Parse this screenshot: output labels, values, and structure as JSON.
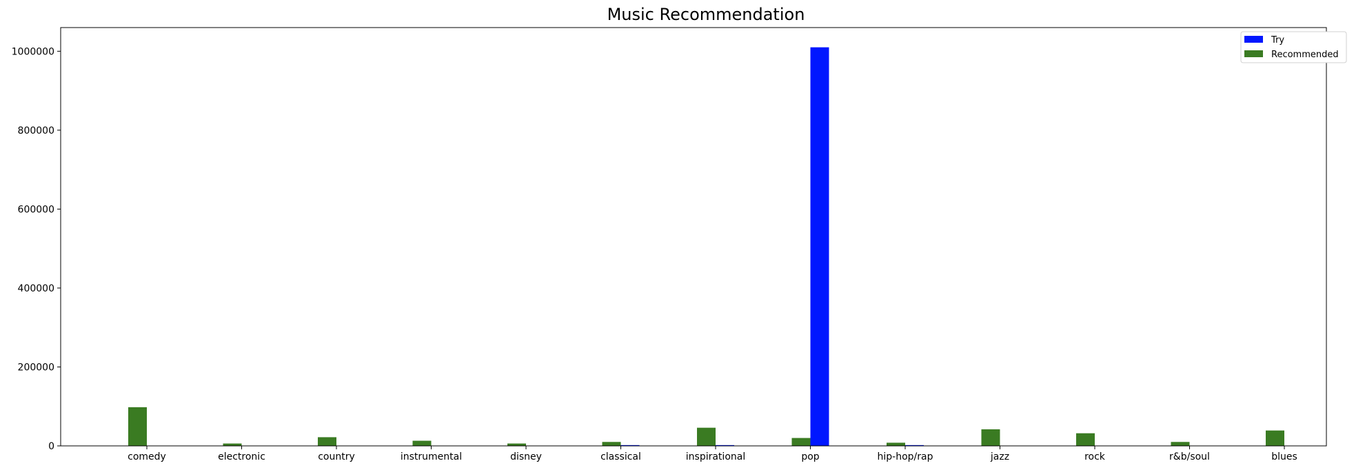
{
  "chart_data": {
    "type": "bar",
    "title": "Music Recommendation",
    "xlabel": "",
    "ylabel": "",
    "categories": [
      "comedy",
      "electronic",
      "country",
      "instrumental",
      "disney",
      "classical",
      "inspirational",
      "pop",
      "hip-hop/rap",
      "jazz",
      "rock",
      "r&b/soul",
      "blues"
    ],
    "series": [
      {
        "name": "Try",
        "color": "#0017ff",
        "values": [
          0,
          0,
          0,
          0,
          0,
          2000,
          2000,
          1010000,
          2000,
          0,
          0,
          0,
          0
        ]
      },
      {
        "name": "Recommended",
        "color": "#3a7b22",
        "values": [
          98000,
          6000,
          22000,
          13000,
          6000,
          10000,
          46000,
          20000,
          8000,
          42000,
          32000,
          10000,
          39000
        ]
      }
    ],
    "ylim": [
      0,
      1060000
    ],
    "yticks": [
      0,
      200000,
      400000,
      600000,
      800000,
      1000000
    ],
    "legend_position": "top-right",
    "grid": false
  }
}
